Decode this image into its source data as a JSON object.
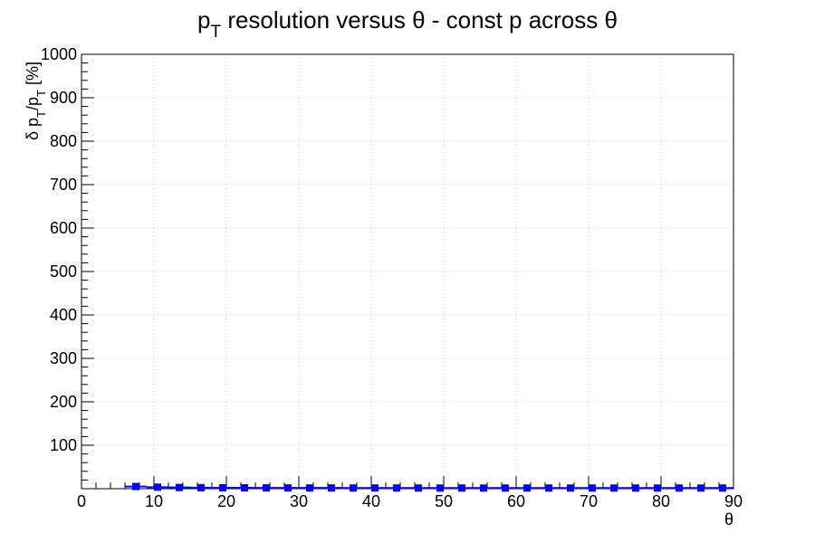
{
  "chart_data": {
    "type": "scatter",
    "title": {
      "base": "p",
      "sub": "T",
      "rest": " resolution versus θ - const p across θ"
    },
    "xlabel": "θ",
    "ylabel": {
      "pre": "δ p",
      "sub1": "T",
      "mid": "/p",
      "sub2": "T",
      "post": " [%]"
    },
    "xlim": [
      0,
      90
    ],
    "ylim": [
      0,
      1000
    ],
    "xticks": [
      0,
      10,
      20,
      30,
      40,
      50,
      60,
      70,
      80,
      90
    ],
    "yticks": [
      100,
      200,
      300,
      400,
      500,
      600,
      700,
      800,
      900,
      1000
    ],
    "grid": true,
    "x_errors": 1.5,
    "series": [
      {
        "color": "#0000ff",
        "marker": "square",
        "x": [
          7.5,
          10.5,
          13.5,
          16.5,
          19.5,
          22.5,
          25.5,
          28.5,
          31.5,
          34.5,
          37.5,
          40.5,
          43.5,
          46.5,
          49.5,
          52.5,
          55.5,
          58.5,
          61.5,
          64.5,
          67.5,
          70.5,
          73.5,
          76.5,
          79.5,
          82.5,
          85.5,
          88.5
        ],
        "y": [
          5,
          3.5,
          2.8,
          2.4,
          2.2,
          2,
          1.9,
          1.8,
          1.7,
          1.7,
          1.6,
          1.6,
          1.6,
          1.5,
          1.5,
          1.5,
          1.5,
          1.5,
          1.5,
          1.5,
          1.5,
          1.5,
          1.5,
          1.5,
          1.5,
          1.5,
          1.5,
          1.5
        ]
      }
    ]
  }
}
